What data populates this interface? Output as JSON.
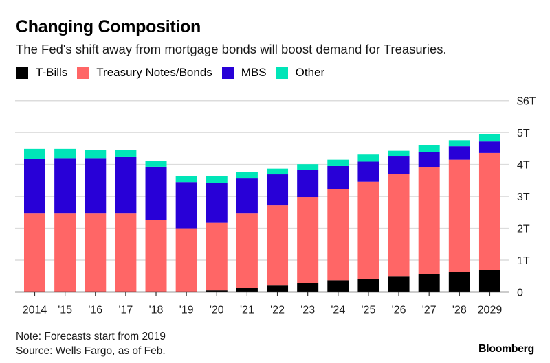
{
  "title": "Changing Composition",
  "subtitle": "The Fed's shift away from mortgage bonds will boost demand for Treasuries.",
  "legend": [
    {
      "label": "T-Bills",
      "color": "#000000"
    },
    {
      "label": "Treasury Notes/Bonds",
      "color": "#ff6666"
    },
    {
      "label": "MBS",
      "color": "#2800d7"
    },
    {
      "label": "Other",
      "color": "#00e5b8"
    }
  ],
  "footer": {
    "note": "Note: Forecasts start from 2019",
    "source": "Source: Wells Fargo, as of Feb.",
    "brand": "Bloomberg"
  },
  "chart_data": {
    "type": "bar",
    "stacked": true,
    "title": "Changing Composition",
    "subtitle": "The Fed's shift away from mortgage bonds will boost demand for Treasuries.",
    "unit": "trillions of dollars",
    "categories": [
      "2014",
      "'15",
      "'16",
      "'17",
      "'18",
      "'19",
      "'20",
      "'21",
      "'22",
      "'23",
      "'24",
      "'25",
      "'26",
      "'27",
      "'28",
      "2029"
    ],
    "series": [
      {
        "name": "T-Bills",
        "color": "#000000",
        "values": [
          0.0,
          0.0,
          0.0,
          0.0,
          0.0,
          0.0,
          0.05,
          0.13,
          0.2,
          0.28,
          0.37,
          0.42,
          0.5,
          0.55,
          0.63,
          0.68
        ]
      },
      {
        "name": "Treasury Notes/Bonds",
        "color": "#ff6666",
        "values": [
          2.46,
          2.46,
          2.46,
          2.46,
          2.27,
          2.0,
          2.12,
          2.33,
          2.52,
          2.7,
          2.85,
          3.04,
          3.2,
          3.36,
          3.52,
          3.68
        ]
      },
      {
        "name": "MBS",
        "color": "#2800d7",
        "values": [
          1.71,
          1.74,
          1.74,
          1.77,
          1.66,
          1.45,
          1.25,
          1.1,
          0.97,
          0.84,
          0.73,
          0.63,
          0.55,
          0.49,
          0.42,
          0.36
        ]
      },
      {
        "name": "Other",
        "color": "#00e5b8",
        "values": [
          0.32,
          0.29,
          0.26,
          0.23,
          0.19,
          0.19,
          0.22,
          0.21,
          0.18,
          0.19,
          0.2,
          0.22,
          0.18,
          0.2,
          0.19,
          0.22
        ]
      }
    ],
    "yaxis": {
      "ticks": [
        0,
        1,
        2,
        3,
        4,
        5,
        6
      ],
      "tick_labels": [
        "0",
        "1T",
        "2T",
        "3T",
        "4T",
        "5T",
        "$6T"
      ],
      "position": "right",
      "ylim": [
        0,
        6
      ]
    },
    "xlabel": "",
    "ylabel": "",
    "grid": true,
    "legend_position": "top-left"
  }
}
